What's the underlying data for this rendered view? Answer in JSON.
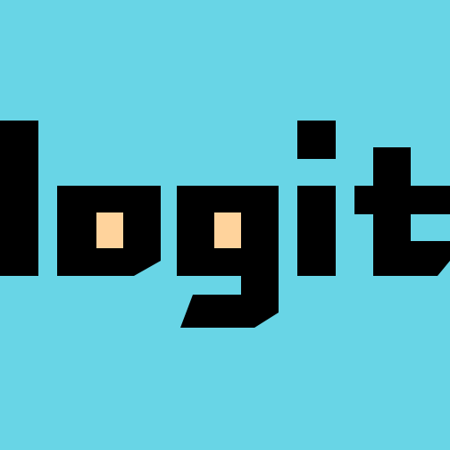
{
  "logo": {
    "text": "logit",
    "colors": {
      "background": "#68d5e6",
      "letters": "#000000",
      "counter_fill": "#ffd39c"
    }
  }
}
